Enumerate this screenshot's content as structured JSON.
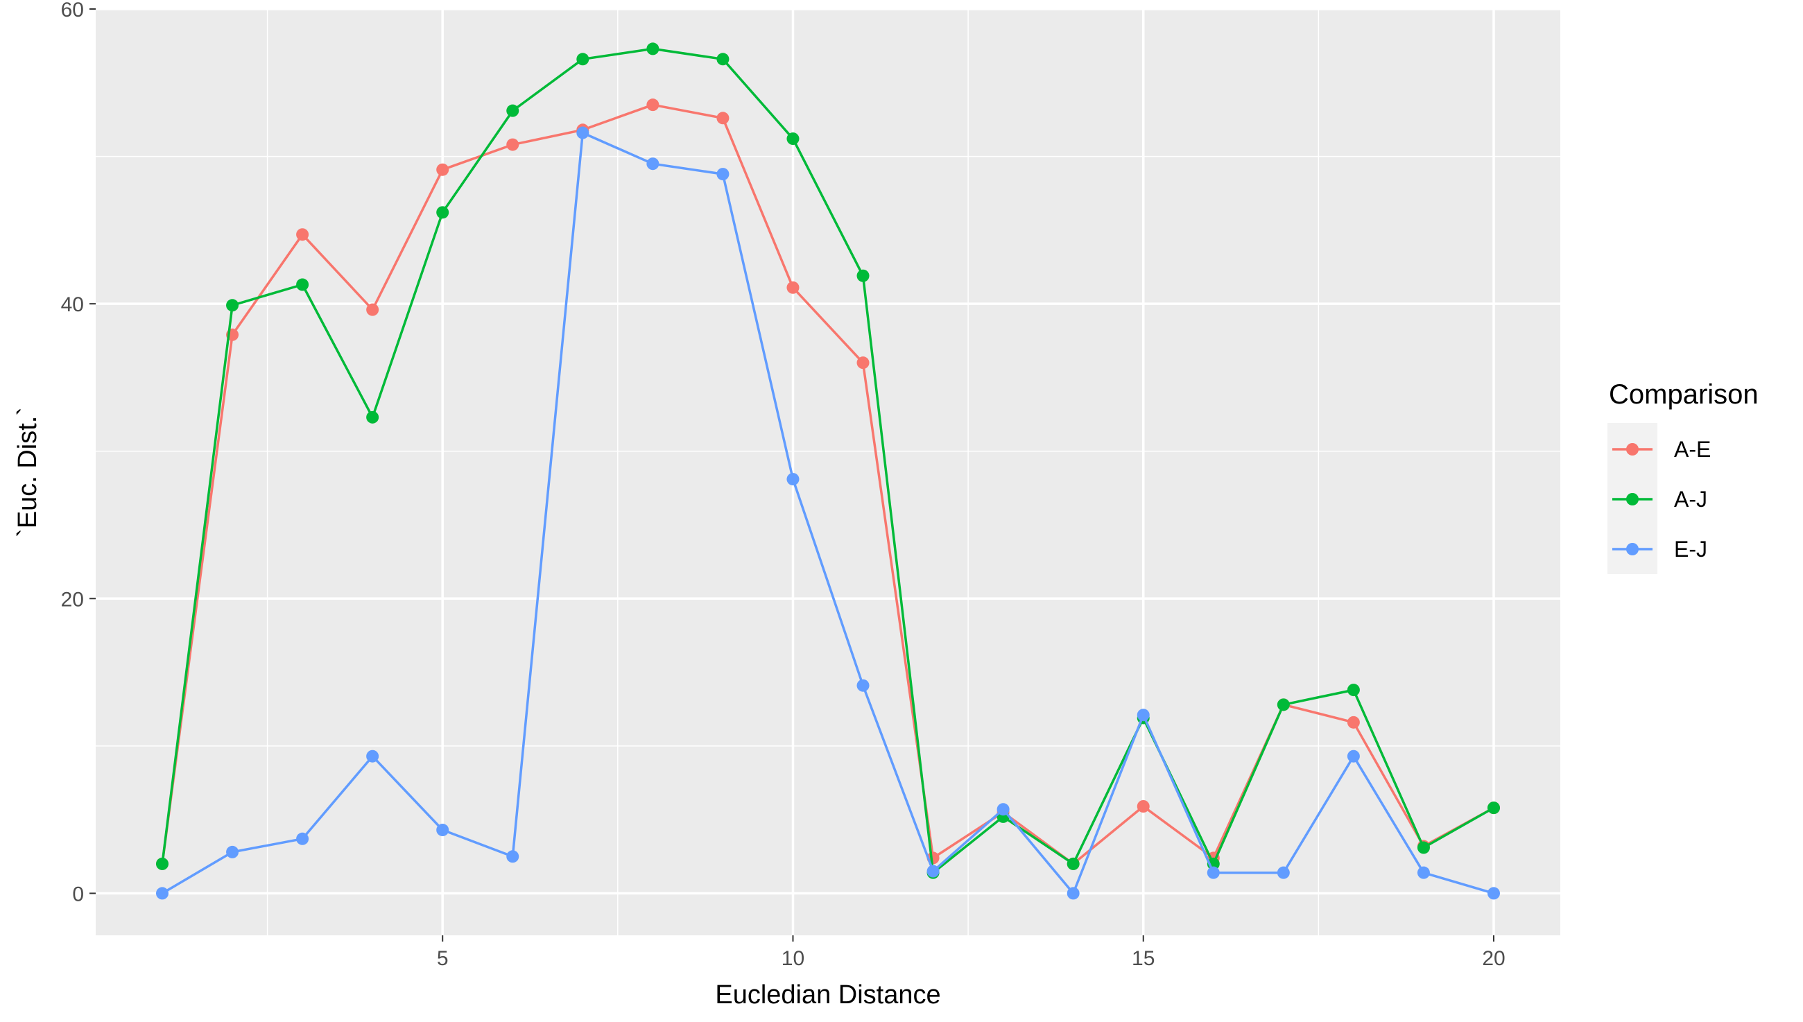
{
  "chart_data": {
    "type": "line",
    "title": "",
    "xlabel": "Eucledian Distance",
    "ylabel": "`Euc. Dist.`",
    "xlim": [
      0.05,
      20.95
    ],
    "ylim": [
      -2.85,
      60
    ],
    "x_ticks": [
      5,
      10,
      15,
      20
    ],
    "y_ticks": [
      0,
      20,
      40,
      60
    ],
    "grid": true,
    "markers": true,
    "legend": {
      "title": "Comparison",
      "position": "right"
    },
    "x": [
      1,
      2,
      3,
      4,
      5,
      6,
      7,
      8,
      9,
      10,
      11,
      12,
      13,
      14,
      15,
      16,
      17,
      18,
      19,
      20
    ],
    "series": [
      {
        "name": "A-E",
        "color": "#F8766D",
        "values": [
          2.0,
          37.9,
          44.7,
          39.6,
          49.1,
          50.8,
          51.8,
          53.5,
          52.6,
          41.1,
          36.0,
          2.4,
          5.5,
          2.0,
          5.9,
          2.4,
          12.8,
          11.6,
          3.2,
          5.8
        ]
      },
      {
        "name": "A-J",
        "color": "#00BA38",
        "values": [
          2.0,
          39.9,
          41.3,
          32.3,
          46.2,
          53.1,
          56.6,
          57.3,
          56.6,
          51.2,
          41.9,
          1.4,
          5.2,
          2.0,
          11.9,
          2.0,
          12.8,
          13.8,
          3.1,
          5.8
        ]
      },
      {
        "name": "E-J",
        "color": "#619CFF",
        "values": [
          0.0,
          2.8,
          3.7,
          9.3,
          4.3,
          2.5,
          51.6,
          49.5,
          48.8,
          28.1,
          14.1,
          1.5,
          5.7,
          0.0,
          12.1,
          1.4,
          1.4,
          9.3,
          1.4,
          0.0
        ]
      }
    ]
  }
}
